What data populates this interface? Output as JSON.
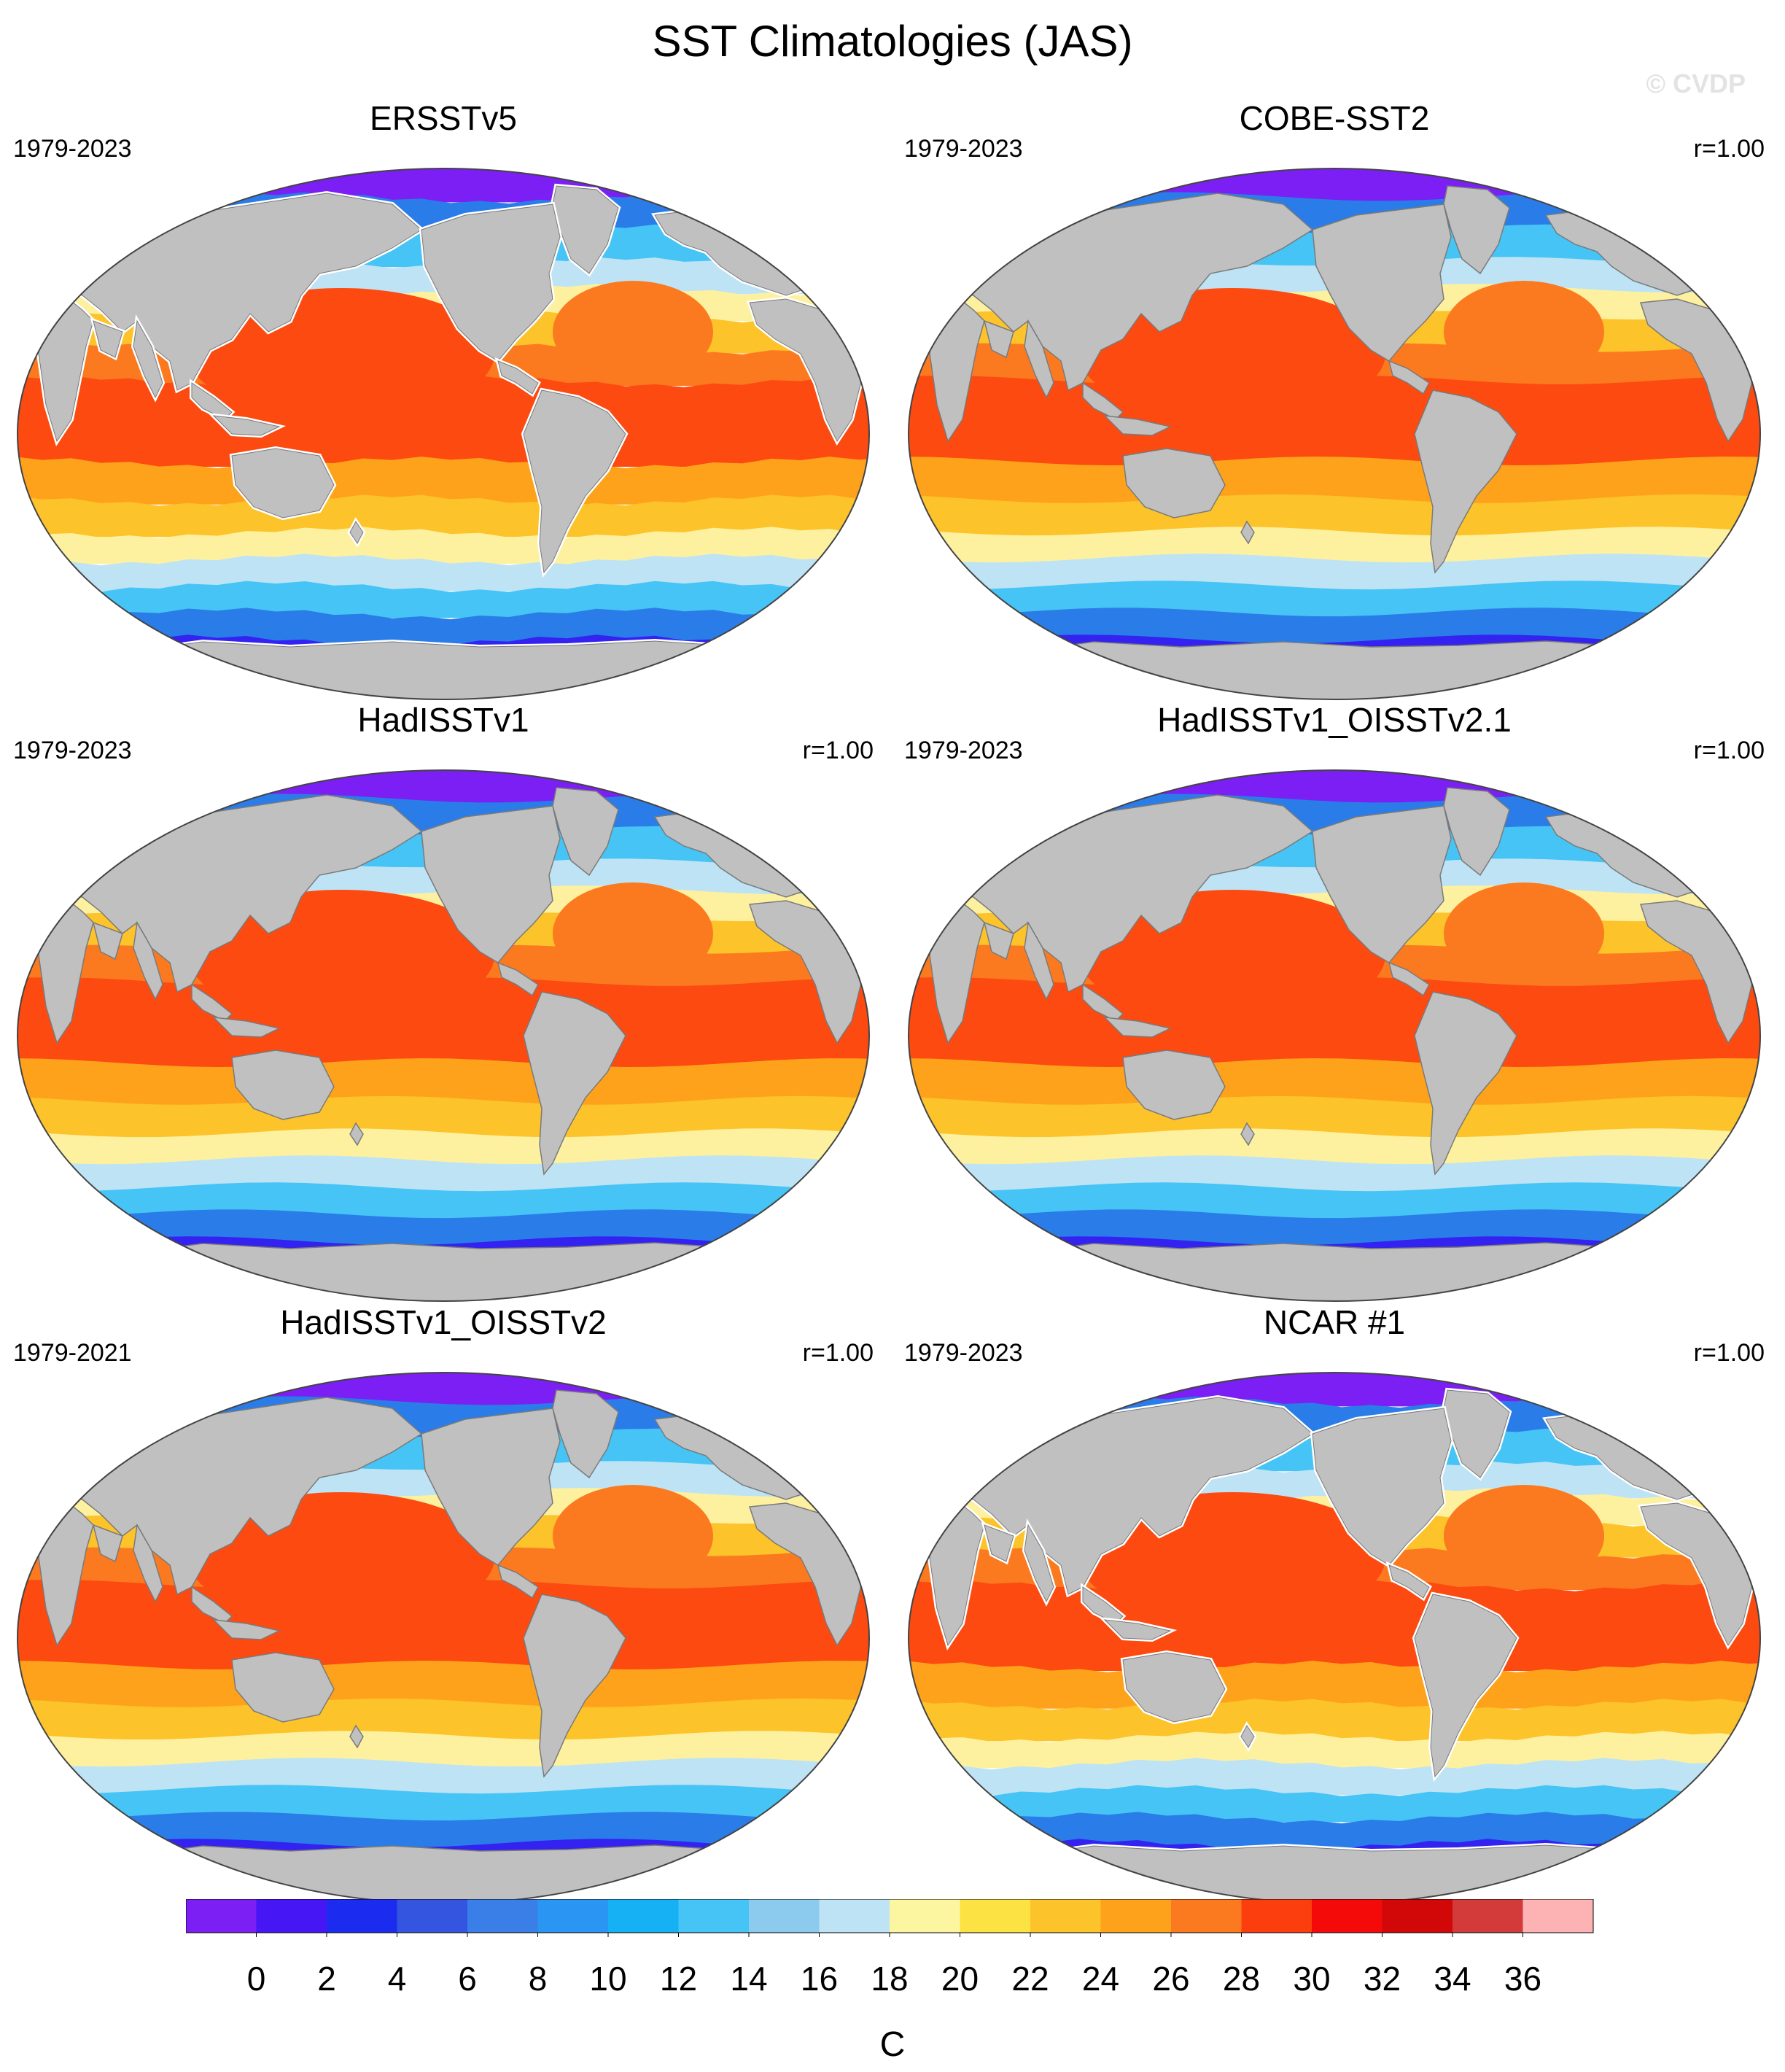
{
  "figure": {
    "title": "SST Climatologies (JAS)",
    "watermark": "© CVDP"
  },
  "panels": [
    {
      "name": "ERSSTv5",
      "period": "1979-2023",
      "corr": "",
      "variant": "coarse"
    },
    {
      "name": "COBE-SST2",
      "period": "1979-2023",
      "corr": "r=1.00",
      "variant": "smooth"
    },
    {
      "name": "HadISSTv1",
      "period": "1979-2023",
      "corr": "r=1.00",
      "variant": "smooth"
    },
    {
      "name": "HadISSTv1_OISSTv2.1",
      "period": "1979-2023",
      "corr": "r=1.00",
      "variant": "smooth"
    },
    {
      "name": "HadISSTv1_OISSTv2",
      "period": "1979-2021",
      "corr": "r=1.00",
      "variant": "smooth"
    },
    {
      "name": "NCAR #1",
      "period": "1979-2023",
      "corr": "r=1.00",
      "variant": "coarse"
    }
  ],
  "colorbar": {
    "unit": "C",
    "labels": [
      "0",
      "2",
      "4",
      "6",
      "8",
      "10",
      "12",
      "14",
      "16",
      "18",
      "20",
      "22",
      "24",
      "26",
      "28",
      "30",
      "32",
      "34",
      "36"
    ],
    "colors": [
      "#7b1ff5",
      "#4616f5",
      "#1b2cf0",
      "#3355e0",
      "#3a7ee8",
      "#2a95f2",
      "#16b0f5",
      "#45c4f5",
      "#8ccaee",
      "#bde3f5",
      "#fdf6a1",
      "#fde244",
      "#fdc32a",
      "#fda21a",
      "#fc7a1f",
      "#fc3e0f",
      "#f50a0a",
      "#d20708",
      "#d33a3a",
      "#fdb3b3"
    ],
    "ocean_colors": {
      "polar": "#7b1ff5",
      "deep": "#3322f0",
      "cold": "#2a7ce8",
      "cool": "#45c4f5",
      "pale": "#bde3f5",
      "mild": "#fdf1a0",
      "warm": "#fdc32a",
      "hot": "#fda21a",
      "hotter": "#fc7a1f",
      "tropical": "#fc4a10"
    },
    "land_color": "#c0c0c0",
    "missing_color": "#ffffff"
  }
}
